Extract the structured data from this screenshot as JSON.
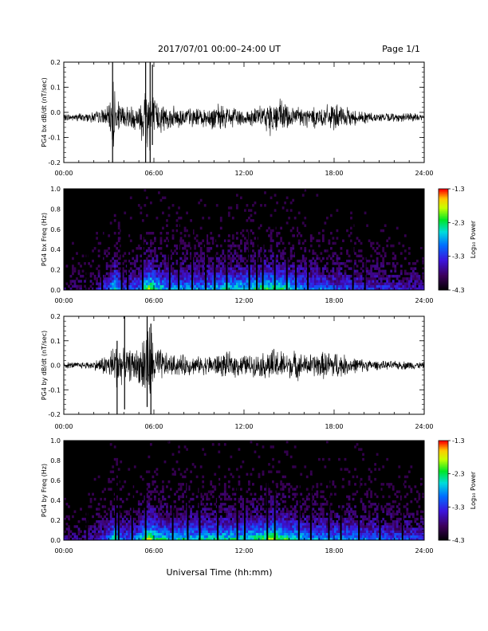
{
  "header": {
    "title": "2017/07/01   00:00–24:00 UT",
    "page": "Page 1/1"
  },
  "x_axis": {
    "ticks": [
      "00:00",
      "06:00",
      "12:00",
      "18:00",
      "24:00"
    ],
    "label": "Universal Time (hh:mm)"
  },
  "chart_data": [
    {
      "type": "line",
      "id": "bx-dbdt",
      "ylabel": "PG4 bx dB/dt (nT/sec)",
      "xlim": [
        0,
        24
      ],
      "ylim": [
        -0.2,
        0.2
      ],
      "yticks": [
        "0.2",
        "0.1",
        "0.0",
        "-0.1",
        "-0.2"
      ],
      "yticks_values": [
        0.2,
        0.1,
        0.0,
        -0.1,
        -0.2
      ],
      "x_hours": [
        0,
        1,
        2,
        3,
        3.3,
        3.5,
        4,
        5,
        5.5,
        5.8,
        6,
        7,
        8,
        9,
        10,
        11,
        12,
        13,
        13.5,
        14,
        14.5,
        15,
        16,
        17,
        18,
        19,
        20,
        21,
        22,
        23,
        24
      ],
      "envelope": [
        0.015,
        0.02,
        0.025,
        0.05,
        0.2,
        0.08,
        0.06,
        0.06,
        0.2,
        0.2,
        0.09,
        0.05,
        0.05,
        0.04,
        0.06,
        0.05,
        0.04,
        0.05,
        0.06,
        0.1,
        0.08,
        0.06,
        0.05,
        0.05,
        0.06,
        0.04,
        0.03,
        0.02,
        0.02,
        0.02,
        0.015
      ],
      "spikes": [
        {
          "x": 3.25,
          "y": [
            -0.2,
            0.2
          ]
        },
        {
          "x": 5.45,
          "y": [
            -0.2,
            0.2
          ]
        },
        {
          "x": 5.75,
          "y": [
            -0.2,
            0.2
          ]
        },
        {
          "x": 5.9,
          "y": [
            -0.13,
            0.19
          ]
        }
      ],
      "offset": -0.02
    },
    {
      "type": "heatmap",
      "id": "bx-freq",
      "ylabel": "PG4 bx Freq (Hz)",
      "xlim": [
        0,
        24
      ],
      "ylim": [
        0,
        1
      ],
      "yticks": [
        "1.0",
        "0.8",
        "0.6",
        "0.4",
        "0.2",
        "0.0"
      ],
      "yticks_values": [
        1.0,
        0.8,
        0.6,
        0.4,
        0.2,
        0.0
      ],
      "colorbar": {
        "label": "Log₁₀ Power",
        "ticks": [
          "-1.3",
          "-2.3",
          "-3.3",
          "-4.3"
        ],
        "ticks_values": [
          -1.3,
          -2.3,
          -3.3,
          -4.3
        ],
        "range": [
          -4.3,
          -1.3
        ]
      },
      "activity_hours": [
        0,
        2,
        3,
        3.4,
        4,
        5,
        5.7,
        6,
        7,
        8,
        9,
        10,
        11,
        12,
        13,
        14,
        14.5,
        15,
        16,
        17,
        18,
        19,
        20,
        21,
        22,
        23,
        24
      ],
      "activity": [
        0.1,
        0.15,
        0.35,
        0.6,
        0.3,
        0.4,
        0.75,
        0.6,
        0.45,
        0.5,
        0.45,
        0.5,
        0.55,
        0.55,
        0.6,
        0.65,
        0.6,
        0.55,
        0.45,
        0.4,
        0.35,
        0.35,
        0.3,
        0.3,
        0.25,
        0.25,
        0.2
      ],
      "gaps_hours": [
        1.5,
        2.5,
        3.8,
        4.2,
        5.2,
        7.0,
        7.6,
        8.5,
        9.4,
        10.0,
        10.8,
        12.3,
        12.8,
        13.2,
        14.0,
        14.8,
        15.4,
        16.2,
        19.2,
        20.0
      ]
    },
    {
      "type": "line",
      "id": "by-dbdt",
      "ylabel": "PG4 by dB/dt (nT/sec)",
      "xlim": [
        0,
        24
      ],
      "ylim": [
        -0.2,
        0.2
      ],
      "yticks": [
        "0.2",
        "0.1",
        "0.0",
        "-0.1",
        "-0.2"
      ],
      "yticks_values": [
        0.2,
        0.1,
        0.0,
        -0.1,
        -0.2
      ],
      "x_hours": [
        0,
        1,
        2,
        3,
        3.5,
        4,
        5,
        5.5,
        5.8,
        6,
        7,
        8,
        9,
        10,
        11,
        12,
        13,
        13.5,
        14,
        15,
        15.5,
        16,
        17,
        18,
        19,
        20,
        21,
        22,
        23,
        24
      ],
      "envelope": [
        0.015,
        0.015,
        0.02,
        0.06,
        0.12,
        0.07,
        0.08,
        0.2,
        0.2,
        0.1,
        0.05,
        0.05,
        0.04,
        0.05,
        0.06,
        0.05,
        0.05,
        0.07,
        0.08,
        0.06,
        0.07,
        0.05,
        0.06,
        0.07,
        0.04,
        0.03,
        0.02,
        0.02,
        0.02,
        0.015
      ],
      "spikes": [
        {
          "x": 3.55,
          "y": [
            -0.2,
            0.1
          ]
        },
        {
          "x": 4.05,
          "y": [
            -0.18,
            0.2
          ]
        },
        {
          "x": 5.55,
          "y": [
            -0.17,
            0.2
          ]
        },
        {
          "x": 5.8,
          "y": [
            -0.2,
            0.17
          ]
        }
      ],
      "offset": 0.0
    },
    {
      "type": "heatmap",
      "id": "by-freq",
      "ylabel": "PG4 by Freq (Hz)",
      "xlim": [
        0,
        24
      ],
      "ylim": [
        0,
        1
      ],
      "yticks": [
        "1.0",
        "0.8",
        "0.6",
        "0.4",
        "0.2",
        "0.0"
      ],
      "yticks_values": [
        1.0,
        0.8,
        0.6,
        0.4,
        0.2,
        0.0
      ],
      "colorbar": {
        "label": "Log₁₀ Power",
        "ticks": [
          "-1.3",
          "-2.3",
          "-3.3",
          "-4.3"
        ],
        "ticks_values": [
          -1.3,
          -2.3,
          -3.3,
          -4.3
        ],
        "range": [
          -4.3,
          -1.3
        ]
      },
      "activity_hours": [
        0,
        2,
        3,
        3.4,
        4,
        5,
        5.7,
        6,
        7,
        8,
        9,
        10,
        11,
        12,
        13,
        14,
        14.5,
        15,
        16,
        17,
        18,
        19,
        20,
        21,
        22,
        23,
        24
      ],
      "activity": [
        0.15,
        0.2,
        0.4,
        0.6,
        0.35,
        0.45,
        0.8,
        0.65,
        0.5,
        0.55,
        0.5,
        0.55,
        0.55,
        0.55,
        0.6,
        0.7,
        0.65,
        0.6,
        0.5,
        0.45,
        0.45,
        0.45,
        0.4,
        0.4,
        0.35,
        0.35,
        0.3
      ],
      "gaps_hours": [
        1.5,
        3.4,
        3.6,
        4.5,
        5.4,
        7.2,
        8.2,
        9.0,
        10.2,
        11.5,
        12.0,
        13.5,
        14.0,
        15.6,
        16.4,
        17.6,
        18.4,
        19.6,
        21.0,
        22.5
      ]
    }
  ]
}
